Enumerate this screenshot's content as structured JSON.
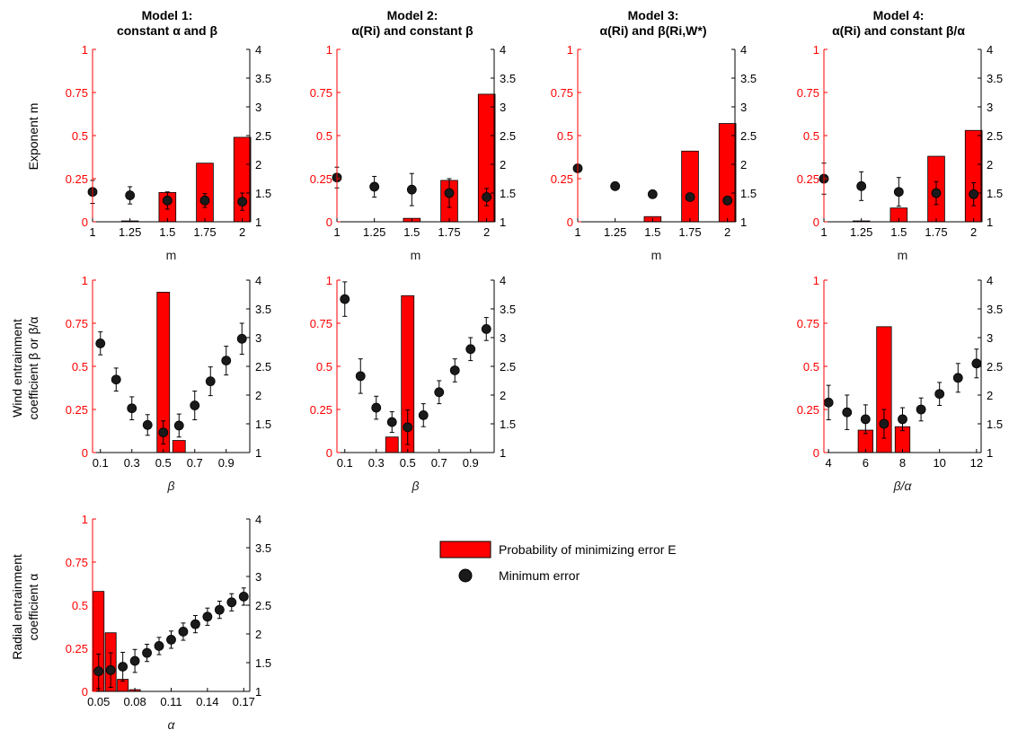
{
  "figure": {
    "column_titles": [
      [
        "Model 1:",
        "constant α and β"
      ],
      [
        "Model 2:",
        "α(Ri) and constant  β"
      ],
      [
        "Model 3:",
        "α(Ri) and β(Ri,W*)"
      ],
      [
        "Model 4:",
        "α(Ri) and constant β/α"
      ]
    ],
    "row_labels": [
      [
        "Exponent m"
      ],
      [
        "Wind entrainment",
        "coefficient β or β/α"
      ],
      [
        "Radial entrainment",
        "coefficient α"
      ]
    ],
    "colors": {
      "left_axis": "#ff0000",
      "bar_fill": "#ff0000",
      "bar_stroke": "#000000",
      "marker": "#1a1a1a",
      "right_axis": "#000000"
    },
    "legend": {
      "position": "center",
      "items": [
        {
          "label": "Probability of minimizing error E",
          "symbol": "bar"
        },
        {
          "label": "Minimum error",
          "symbol": "marker"
        }
      ]
    }
  },
  "chart_data": [
    {
      "id": "m1-m",
      "type": "bar",
      "column": 1,
      "row": 1,
      "xlabel": "m",
      "ylim": [
        0,
        1
      ],
      "y2lim": [
        1,
        4
      ],
      "yticks": [
        "0",
        "0.25",
        "0.5",
        "0.75",
        "1"
      ],
      "y2ticks": [
        "1",
        "1.5",
        "2",
        "2.5",
        "3",
        "3.5",
        "4"
      ],
      "xticks": [
        1,
        1.25,
        1.5,
        1.75,
        2
      ],
      "xticklabels": [
        "1",
        "1.25",
        "1.5",
        "1.75",
        "2"
      ],
      "xlim": [
        1,
        2.05
      ],
      "series": [
        {
          "name": "Probability of minimizing error E",
          "axis": "left",
          "type": "bar",
          "x": [
            1,
            1.25,
            1.5,
            1.75,
            2
          ],
          "values": [
            0,
            0.005,
            0.17,
            0.34,
            0.49
          ]
        },
        {
          "name": "Minimum error",
          "axis": "right",
          "type": "scatter",
          "x": [
            1,
            1.25,
            1.5,
            1.75,
            2
          ],
          "values": [
            1.52,
            1.46,
            1.37,
            1.37,
            1.35
          ],
          "err": [
            0.2,
            0.15,
            0.15,
            0.12,
            0.15
          ]
        }
      ]
    },
    {
      "id": "m2-m",
      "type": "bar",
      "column": 2,
      "row": 1,
      "xlabel": "m",
      "ylim": [
        0,
        1
      ],
      "y2lim": [
        1,
        4
      ],
      "yticks": [
        "0",
        "0.25",
        "0.5",
        "0.75",
        "1"
      ],
      "y2ticks": [
        "1",
        "1.5",
        "2",
        "2.5",
        "3",
        "3.5",
        "4"
      ],
      "xticks": [
        1,
        1.25,
        1.5,
        1.75,
        2
      ],
      "xticklabels": [
        "1",
        "1.25",
        "1.5",
        "1.75",
        "2"
      ],
      "xlim": [
        1,
        2.05
      ],
      "series": [
        {
          "name": "Probability of minimizing error E",
          "axis": "left",
          "type": "bar",
          "x": [
            1,
            1.25,
            1.5,
            1.75,
            2
          ],
          "values": [
            0,
            0,
            0.02,
            0.24,
            0.74
          ]
        },
        {
          "name": "Minimum error",
          "axis": "right",
          "type": "scatter",
          "x": [
            1,
            1.25,
            1.5,
            1.75,
            2
          ],
          "values": [
            1.77,
            1.61,
            1.56,
            1.5,
            1.43
          ],
          "err": [
            0.18,
            0.18,
            0.28,
            0.25,
            0.15
          ]
        }
      ]
    },
    {
      "id": "m3-m",
      "type": "bar",
      "column": 3,
      "row": 1,
      "xlabel": "m",
      "ylim": [
        0,
        1
      ],
      "y2lim": [
        1,
        4
      ],
      "yticks": [
        "0",
        "0.25",
        "0.5",
        "0.75",
        "1"
      ],
      "y2ticks": [
        "1",
        "1.5",
        "2",
        "2.5",
        "3",
        "3.5",
        "4"
      ],
      "xticks": [
        1,
        1.25,
        1.5,
        1.75,
        2
      ],
      "xticklabels": [
        "1",
        "1.25",
        "1.5",
        "1.75",
        "2"
      ],
      "xlim": [
        1,
        2.05
      ],
      "series": [
        {
          "name": "Probability of minimizing error E",
          "axis": "left",
          "type": "bar",
          "x": [
            1,
            1.25,
            1.5,
            1.75,
            2
          ],
          "values": [
            0,
            0,
            0.03,
            0.41,
            0.57
          ]
        },
        {
          "name": "Minimum error",
          "axis": "right",
          "type": "scatter",
          "x": [
            1,
            1.25,
            1.5,
            1.75,
            2
          ],
          "values": [
            1.93,
            1.62,
            1.48,
            1.43,
            1.37
          ],
          "err": [
            0.02,
            0.02,
            0.03,
            0.03,
            0.03
          ]
        }
      ]
    },
    {
      "id": "m4-m",
      "type": "bar",
      "column": 4,
      "row": 1,
      "xlabel": "m",
      "ylim": [
        0,
        1
      ],
      "y2lim": [
        1,
        4
      ],
      "yticks": [
        "0",
        "0.25",
        "0.5",
        "0.75",
        "1"
      ],
      "y2ticks": [
        "1",
        "1.5",
        "2",
        "2.5",
        "3",
        "3.5",
        "4"
      ],
      "xticks": [
        1,
        1.25,
        1.5,
        1.75,
        2
      ],
      "xticklabels": [
        "1",
        "1.25",
        "1.5",
        "1.75",
        "2"
      ],
      "xlim": [
        1,
        2.05
      ],
      "series": [
        {
          "name": "Probability of minimizing error E",
          "axis": "left",
          "type": "bar",
          "x": [
            1,
            1.25,
            1.5,
            1.75,
            2
          ],
          "values": [
            0,
            0.005,
            0.08,
            0.38,
            0.53
          ]
        },
        {
          "name": "Minimum error",
          "axis": "right",
          "type": "scatter",
          "x": [
            1,
            1.25,
            1.5,
            1.75,
            2
          ],
          "values": [
            1.75,
            1.62,
            1.52,
            1.5,
            1.48
          ],
          "err": [
            0.27,
            0.25,
            0.25,
            0.2,
            0.2
          ]
        }
      ]
    },
    {
      "id": "m1-beta",
      "type": "bar",
      "column": 1,
      "row": 2,
      "xlabel": "β",
      "ylim": [
        0,
        1
      ],
      "y2lim": [
        1,
        4
      ],
      "yticks": [
        "0",
        "0.25",
        "0.5",
        "0.75",
        "1"
      ],
      "y2ticks": [
        "1",
        "1.5",
        "2",
        "2.5",
        "3",
        "3.5",
        "4"
      ],
      "xticks": [
        0.1,
        0.3,
        0.5,
        0.7,
        0.9
      ],
      "xticklabels": [
        "0.1",
        "0.3",
        "0.5",
        "0.7",
        "0.9"
      ],
      "xlim": [
        0.05,
        1.05
      ],
      "series": [
        {
          "name": "Probability of minimizing error E",
          "axis": "left",
          "type": "bar",
          "x": [
            0.1,
            0.2,
            0.3,
            0.4,
            0.5,
            0.6,
            0.7,
            0.8,
            0.9,
            1.0
          ],
          "values": [
            0,
            0,
            0,
            0,
            0.93,
            0.07,
            0,
            0,
            0,
            0
          ]
        },
        {
          "name": "Minimum error",
          "axis": "right",
          "type": "scatter",
          "x": [
            0.1,
            0.2,
            0.3,
            0.4,
            0.5,
            0.6,
            0.7,
            0.8,
            0.9,
            1.0
          ],
          "values": [
            2.9,
            2.27,
            1.77,
            1.48,
            1.35,
            1.47,
            1.82,
            2.24,
            2.6,
            2.98
          ],
          "err": [
            0.2,
            0.2,
            0.2,
            0.18,
            0.2,
            0.2,
            0.25,
            0.25,
            0.25,
            0.27
          ]
        }
      ]
    },
    {
      "id": "m2-beta",
      "type": "bar",
      "column": 2,
      "row": 2,
      "xlabel": "β",
      "ylim": [
        0,
        1
      ],
      "y2lim": [
        1,
        4
      ],
      "yticks": [
        "0",
        "0.25",
        "0.5",
        "0.75",
        "1"
      ],
      "y2ticks": [
        "1",
        "1.5",
        "2",
        "2.5",
        "3",
        "3.5",
        "4"
      ],
      "xticks": [
        0.1,
        0.3,
        0.5,
        0.7,
        0.9
      ],
      "xticklabels": [
        "0.1",
        "0.3",
        "0.5",
        "0.7",
        "0.9"
      ],
      "xlim": [
        0.05,
        1.05
      ],
      "series": [
        {
          "name": "Probability of minimizing error E",
          "axis": "left",
          "type": "bar",
          "x": [
            0.1,
            0.2,
            0.3,
            0.4,
            0.5,
            0.6,
            0.7,
            0.8,
            0.9,
            1.0
          ],
          "values": [
            0,
            0,
            0,
            0.09,
            0.91,
            0,
            0,
            0,
            0,
            0
          ]
        },
        {
          "name": "Minimum error",
          "axis": "right",
          "type": "scatter",
          "x": [
            0.1,
            0.2,
            0.3,
            0.4,
            0.5,
            0.6,
            0.7,
            0.8,
            0.9,
            1.0
          ],
          "values": [
            3.67,
            2.33,
            1.78,
            1.53,
            1.44,
            1.65,
            2.05,
            2.43,
            2.8,
            3.15
          ],
          "err": [
            0.3,
            0.3,
            0.2,
            0.18,
            0.3,
            0.2,
            0.2,
            0.2,
            0.2,
            0.2
          ]
        }
      ]
    },
    {
      "id": "m4-beta-alpha",
      "type": "bar",
      "column": 4,
      "row": 2,
      "xlabel": "β/α",
      "ylim": [
        0,
        1
      ],
      "y2lim": [
        1,
        4
      ],
      "yticks": [
        "0",
        "0.25",
        "0.5",
        "0.75",
        "1"
      ],
      "y2ticks": [
        "1",
        "1.5",
        "2",
        "2.5",
        "3",
        "3.5",
        "4"
      ],
      "xticks": [
        4,
        6,
        8,
        10,
        12
      ],
      "xticklabels": [
        "4",
        "6",
        "8",
        "10",
        "12"
      ],
      "xlim": [
        3.75,
        12.25
      ],
      "series": [
        {
          "name": "Probability of minimizing error E",
          "axis": "left",
          "type": "bar",
          "x": [
            4,
            5,
            6,
            7,
            8,
            9,
            10,
            11,
            12
          ],
          "values": [
            0,
            0,
            0.13,
            0.73,
            0.15,
            0,
            0,
            0,
            0
          ]
        },
        {
          "name": "Minimum error",
          "axis": "right",
          "type": "scatter",
          "x": [
            4,
            5,
            6,
            7,
            8,
            9,
            10,
            11,
            12
          ],
          "values": [
            1.87,
            1.7,
            1.58,
            1.5,
            1.58,
            1.75,
            2.02,
            2.3,
            2.55
          ],
          "err": [
            0.3,
            0.3,
            0.25,
            0.25,
            0.2,
            0.2,
            0.2,
            0.25,
            0.25
          ]
        }
      ]
    },
    {
      "id": "m1-alpha",
      "type": "bar",
      "column": 1,
      "row": 3,
      "xlabel": "α",
      "ylim": [
        0,
        1
      ],
      "y2lim": [
        1,
        4
      ],
      "yticks": [
        "0",
        "0.25",
        "0.5",
        "0.75",
        "1"
      ],
      "y2ticks": [
        "1",
        "1.5",
        "2",
        "2.5",
        "3",
        "3.5",
        "4"
      ],
      "xticks": [
        0.05,
        0.08,
        0.11,
        0.14,
        0.17
      ],
      "xticklabels": [
        "0.05",
        "0.08",
        "0.11",
        "0.14",
        "0.17"
      ],
      "xlim": [
        0.045,
        0.175
      ],
      "series": [
        {
          "name": "Probability of minimizing error E",
          "axis": "left",
          "type": "bar",
          "x": [
            0.05,
            0.06,
            0.07,
            0.08,
            0.09,
            0.1,
            0.11,
            0.12,
            0.13,
            0.14,
            0.15,
            0.16,
            0.17
          ],
          "values": [
            0.58,
            0.34,
            0.07,
            0.01,
            0,
            0,
            0,
            0,
            0,
            0,
            0,
            0,
            0
          ]
        },
        {
          "name": "Minimum error",
          "axis": "right",
          "type": "scatter",
          "x": [
            0.05,
            0.06,
            0.07,
            0.08,
            0.09,
            0.1,
            0.11,
            0.12,
            0.13,
            0.14,
            0.15,
            0.16,
            0.17
          ],
          "values": [
            1.35,
            1.37,
            1.43,
            1.53,
            1.67,
            1.79,
            1.9,
            2.04,
            2.17,
            2.3,
            2.42,
            2.55,
            2.65
          ],
          "err": [
            0.3,
            0.3,
            0.25,
            0.2,
            0.15,
            0.15,
            0.15,
            0.15,
            0.15,
            0.15,
            0.15,
            0.15,
            0.15
          ]
        }
      ]
    }
  ]
}
